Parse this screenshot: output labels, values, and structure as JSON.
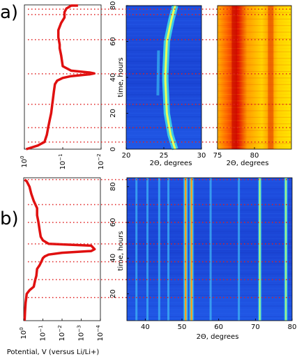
{
  "panel_labels": [
    "a)",
    "b)"
  ],
  "colors": {
    "potential": "#e01010",
    "marker": "#e02020",
    "heatmap_low": "#1030d0",
    "heatmap_high": "#ff2000"
  },
  "chart_data": [
    {
      "type": "line",
      "panel": "a",
      "xscale": "log",
      "xlim": [
        1,
        0.01
      ],
      "ylim": [
        0,
        80
      ],
      "xticks": [
        "10^0",
        "10^-1",
        "10^-2"
      ],
      "yticks": [
        "0",
        "20",
        "40",
        "60",
        "80"
      ],
      "xlabel": "",
      "ylabel": "",
      "series": [
        {
          "x": [
            0.9,
            0.45,
            0.3,
            0.26,
            0.24,
            0.22,
            0.2,
            0.19,
            0.18,
            0.17,
            0.16,
            0.14,
            0.1,
            0.06,
            0.02,
            0.015,
            0.02,
            0.06,
            0.1,
            0.11,
            0.12,
            0.12,
            0.13,
            0.13,
            0.11,
            0.09,
            0.09,
            0.08,
            0.06,
            0.05,
            0.04
          ],
          "y": [
            0,
            2,
            4,
            8,
            12,
            16,
            20,
            24,
            28,
            32,
            36,
            38,
            39.5,
            40.5,
            41.5,
            42,
            42.5,
            43.5,
            46,
            52,
            56,
            58,
            62,
            66,
            70,
            73,
            76,
            78,
            80,
            82,
            83
          ]
        }
      ],
      "hlines": [
        4,
        12,
        25,
        42,
        61,
        75,
        78
      ]
    },
    {
      "type": "heatmap",
      "panel": "a",
      "xlabel": "2Θ, degrees",
      "ylabel": "time, hours",
      "xlim": [
        20,
        30
      ],
      "ylim": [
        0,
        80
      ],
      "xticks": [
        "20",
        "25",
        "30"
      ],
      "yticks": [
        "0",
        "20",
        "40",
        "60",
        "80"
      ],
      "peaks": [
        {
          "y": [
            0,
            8,
            20,
            38,
            42,
            60,
            72,
            80
          ],
          "x": [
            26.5,
            25.9,
            25.4,
            25.2,
            25.2,
            25.4,
            26.0,
            26.5
          ],
          "intensity": "high"
        },
        {
          "y": [
            30,
            55
          ],
          "x": [
            24.2,
            24.3
          ],
          "intensity": "low"
        }
      ]
    },
    {
      "type": "heatmap",
      "panel": "a",
      "xlabel": "2Θ, degrees",
      "ylabel": "",
      "xlim": [
        75,
        85
      ],
      "ylim": [
        0,
        80
      ],
      "xticks": [
        "75",
        "80"
      ],
      "yticks": [],
      "peaks": [
        {
          "y": [
            0,
            80
          ],
          "x": [
            77.3,
            77.3
          ],
          "intensity": "high"
        },
        {
          "y": [
            0,
            80
          ],
          "x": [
            82.2,
            82.2
          ],
          "intensity": "medium"
        }
      ]
    },
    {
      "type": "line",
      "panel": "b",
      "xscale": "log",
      "xlim": [
        1,
        0.0001
      ],
      "ylim": [
        5,
        85
      ],
      "xticks": [
        "10^0",
        "10^-1",
        "10^-2",
        "10^-3",
        "10^-4"
      ],
      "yticks": [],
      "xlabel": "Potential, V (versus Li/Li+)",
      "ylabel": "",
      "series": [
        {
          "x": [
            0.9,
            0.85,
            0.8,
            0.7,
            0.5,
            0.3,
            0.25,
            0.22,
            0.2,
            0.15,
            0.12,
            0.1,
            0.08,
            0.05,
            0.01,
            0.0003,
            0.0002,
            0.0003,
            0.05,
            0.1,
            0.13,
            0.15,
            0.17,
            0.2,
            0.2,
            0.3,
            0.4,
            0.5,
            0.7,
            0.9
          ],
          "y": [
            5,
            10,
            15,
            20,
            22,
            24,
            28,
            30,
            34,
            36,
            38,
            40,
            41,
            42,
            43,
            44,
            45,
            47,
            48,
            50,
            52,
            56,
            60,
            64,
            68,
            72,
            76,
            80,
            83,
            84
          ]
        }
      ]
    },
    {
      "type": "heatmap",
      "panel": "b",
      "xlabel": "2Θ, degrees",
      "ylabel": "time, hours",
      "xlim": [
        35,
        80
      ],
      "ylim": [
        5,
        85
      ],
      "xticks": [
        "40",
        "50",
        "60",
        "70",
        "80"
      ],
      "yticks": [
        "20",
        "40",
        "60",
        "80"
      ],
      "peaks": [
        {
          "x": 51.0,
          "intensity": "high"
        },
        {
          "x": 52.6,
          "intensity": "high"
        },
        {
          "x": 71.2,
          "intensity": "medium"
        },
        {
          "x": 78.3,
          "intensity": "medium"
        },
        {
          "x": 37.6,
          "intensity": "low"
        },
        {
          "x": 40.6,
          "intensity": "low"
        },
        {
          "x": 43.8,
          "intensity": "low"
        },
        {
          "x": 46.3,
          "intensity": "low"
        },
        {
          "x": 57.8,
          "intensity": "low"
        },
        {
          "x": 65.5,
          "intensity": "low"
        }
      ],
      "hlines": [
        18,
        28,
        38,
        48,
        60,
        70,
        84
      ]
    }
  ]
}
